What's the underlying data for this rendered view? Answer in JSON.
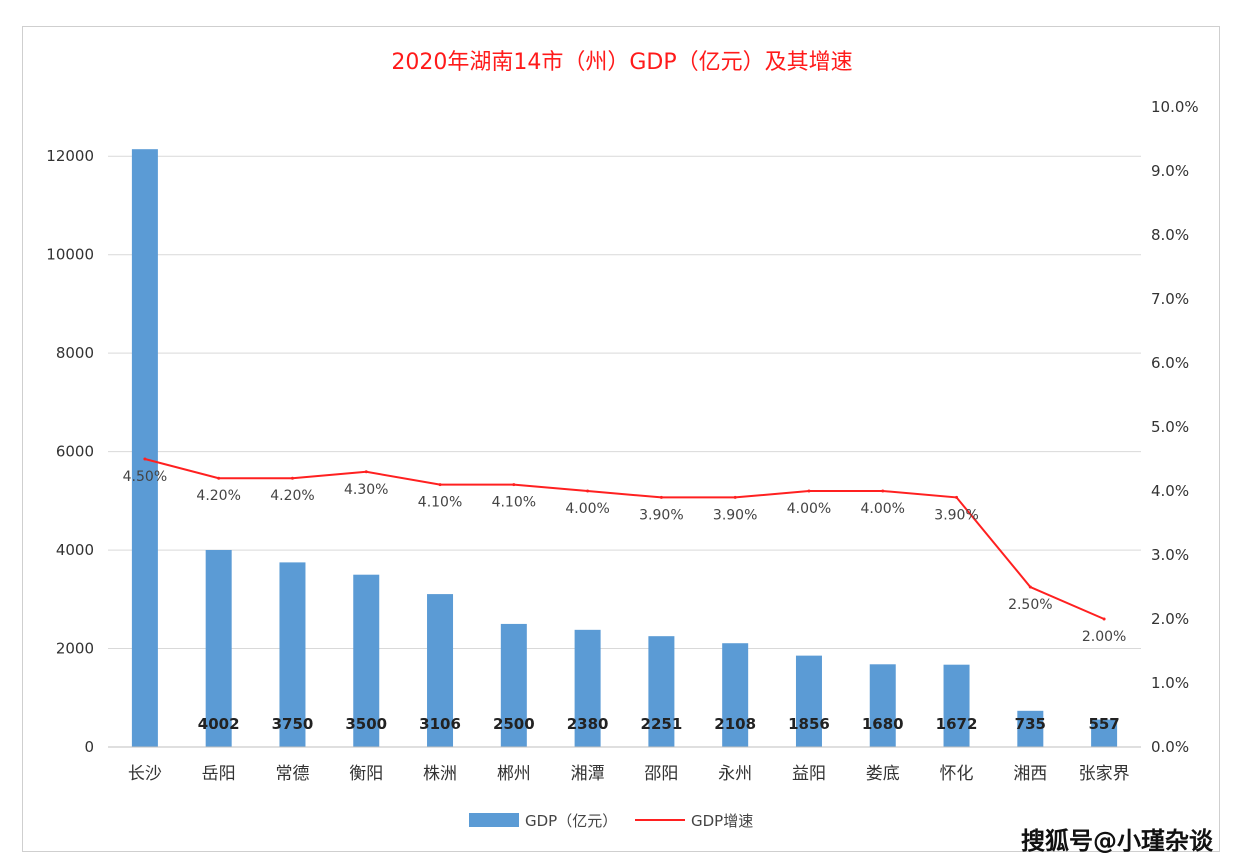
{
  "colors": {
    "bar": "#5b9bd5",
    "line": "#ff2020",
    "title": "#ff1a1a",
    "grid": "#d9d9d9"
  },
  "watermark": "搜狐号@小瑾杂谈",
  "chart_data": {
    "type": "bar",
    "title": "2020年湖南14市（州）GDP（亿元）及其增速",
    "categories": [
      "长沙",
      "岳阳",
      "常德",
      "衡阳",
      "株洲",
      "郴州",
      "湘潭",
      "邵阳",
      "永州",
      "益阳",
      "娄底",
      "怀化",
      "湘西",
      "张家界"
    ],
    "series": [
      {
        "name": "GDP（亿元）",
        "type": "bar",
        "axis": "left",
        "values": [
          12143,
          4002,
          3750,
          3500,
          3106,
          2500,
          2380,
          2251,
          2108,
          1856,
          1680,
          1672,
          735,
          557
        ],
        "data_labels": [
          "",
          "4002",
          "3750",
          "3500",
          "3106",
          "2500",
          "2380",
          "2251",
          "2108",
          "1856",
          "1680",
          "1672",
          "735",
          "557"
        ]
      },
      {
        "name": "GDP增速",
        "type": "line",
        "axis": "right",
        "values": [
          4.5,
          4.2,
          4.2,
          4.3,
          4.1,
          4.1,
          4.0,
          3.9,
          3.9,
          4.0,
          4.0,
          3.9,
          2.5,
          2.0
        ],
        "data_labels": [
          "4.50%",
          "4.20%",
          "4.20%",
          "4.30%",
          "4.10%",
          "4.10%",
          "4.00%",
          "3.90%",
          "3.90%",
          "4.00%",
          "4.00%",
          "3.90%",
          "2.50%",
          "2.00%"
        ]
      }
    ],
    "left_axis": {
      "ylim": [
        0,
        12000
      ],
      "ticks": [
        "0",
        "2000",
        "4000",
        "6000",
        "8000",
        "10000",
        "12000"
      ]
    },
    "right_axis": {
      "ylim": [
        0,
        10
      ],
      "ticks": [
        "0.0%",
        "1.0%",
        "2.0%",
        "3.0%",
        "4.0%",
        "5.0%",
        "6.0%",
        "7.0%",
        "8.0%",
        "9.0%",
        "10.0%"
      ]
    },
    "grid": true,
    "legend_position": "bottom"
  }
}
